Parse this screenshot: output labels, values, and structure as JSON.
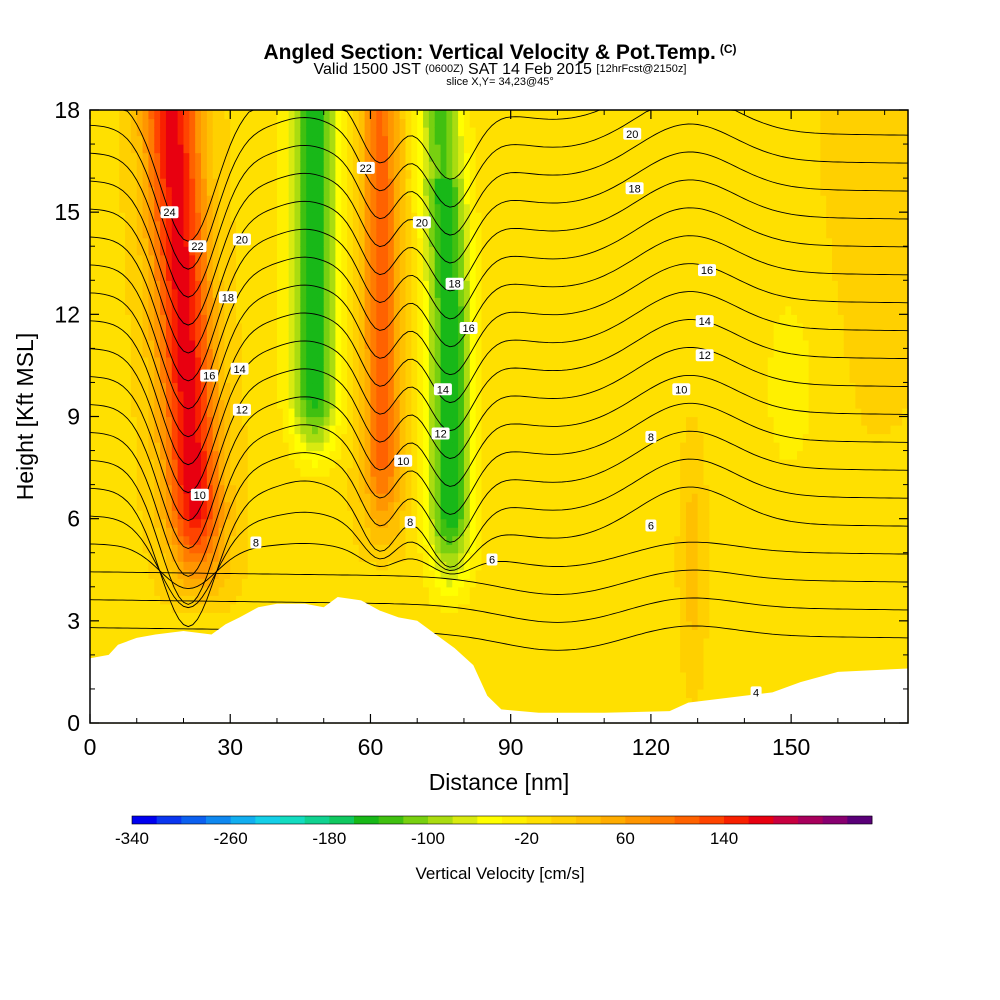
{
  "header": {
    "title": "Angled Section: Vertical Velocity & Pot.Temp.",
    "title_unit": "(C)",
    "subtitle_main": "Valid 1500 JST",
    "subtitle_z": "(0600Z)",
    "subtitle_date": "SAT 14 Feb 2015",
    "subtitle_fcst": "[12hrFcst@2150z]",
    "slice": "slice X,Y= 34,23@45°"
  },
  "chart_data": {
    "type": "heatmap",
    "title": "Angled Section: Vertical Velocity & Pot.Temp.",
    "xlabel": "Distance [nm]",
    "ylabel": "Height [Kft MSL]",
    "xlim": [
      0,
      175
    ],
    "ylim": [
      0,
      18
    ],
    "x_ticks": [
      0,
      30,
      60,
      90,
      120,
      150
    ],
    "y_ticks": [
      0,
      3,
      6,
      9,
      12,
      15,
      18
    ],
    "x_tick_labels": [
      "0",
      "30",
      "60",
      "90",
      "120",
      "150"
    ],
    "y_tick_labels": [
      "0",
      "3",
      "6",
      "9",
      "12",
      "15",
      "18"
    ],
    "fill_variable": "Vertical Velocity [cm/s]",
    "vertical_velocity_bands": [
      {
        "x_center": 20,
        "w_peak": 165,
        "note": "strong updraft"
      },
      {
        "x_center": 48,
        "w_peak": -150,
        "note": "downdraft"
      },
      {
        "x_center": 63,
        "w_peak": 110,
        "note": "updraft"
      },
      {
        "x_center": 77,
        "w_peak": -150,
        "note": "downdraft"
      },
      {
        "x_center": 129,
        "w_peak": 40,
        "note": "weak updraft"
      }
    ],
    "contour_variable": "Potential Temperature (C)",
    "contour_labels": [
      {
        "text": "24",
        "x": 17,
        "y": 15.0
      },
      {
        "text": "22",
        "x": 23,
        "y": 14.0
      },
      {
        "text": "20",
        "x": 32.5,
        "y": 14.2
      },
      {
        "text": "18",
        "x": 29.5,
        "y": 12.5
      },
      {
        "text": "16",
        "x": 25.5,
        "y": 10.2
      },
      {
        "text": "14",
        "x": 32,
        "y": 10.4
      },
      {
        "text": "12",
        "x": 32.5,
        "y": 9.2
      },
      {
        "text": "10",
        "x": 23.5,
        "y": 6.7
      },
      {
        "text": "8",
        "x": 35.5,
        "y": 5.3
      },
      {
        "text": "22",
        "x": 59,
        "y": 16.3
      },
      {
        "text": "20",
        "x": 71,
        "y": 14.7
      },
      {
        "text": "18",
        "x": 78,
        "y": 12.9
      },
      {
        "text": "16",
        "x": 81,
        "y": 11.6
      },
      {
        "text": "14",
        "x": 75.5,
        "y": 9.8
      },
      {
        "text": "12",
        "x": 75,
        "y": 8.5
      },
      {
        "text": "10",
        "x": 67,
        "y": 7.7
      },
      {
        "text": "8",
        "x": 68.5,
        "y": 5.9
      },
      {
        "text": "6",
        "x": 86,
        "y": 4.8
      },
      {
        "text": "20",
        "x": 116,
        "y": 17.3
      },
      {
        "text": "18",
        "x": 116.5,
        "y": 15.7
      },
      {
        "text": "16",
        "x": 132,
        "y": 13.3
      },
      {
        "text": "14",
        "x": 131.5,
        "y": 11.8
      },
      {
        "text": "12",
        "x": 131.5,
        "y": 10.8
      },
      {
        "text": "10",
        "x": 126.5,
        "y": 9.8
      },
      {
        "text": "8",
        "x": 120,
        "y": 8.4
      },
      {
        "text": "6",
        "x": 120,
        "y": 5.8
      },
      {
        "text": "4",
        "x": 142.5,
        "y": 0.9
      }
    ],
    "terrain_kft": [
      [
        0,
        1.9
      ],
      [
        4,
        2.0
      ],
      [
        6,
        2.3
      ],
      [
        10,
        2.5
      ],
      [
        14,
        2.6
      ],
      [
        20,
        2.7
      ],
      [
        26,
        2.6
      ],
      [
        29,
        2.9
      ],
      [
        32,
        3.1
      ],
      [
        36,
        3.4
      ],
      [
        40,
        3.5
      ],
      [
        46,
        3.5
      ],
      [
        50,
        3.4
      ],
      [
        53,
        3.7
      ],
      [
        58,
        3.6
      ],
      [
        62,
        3.3
      ],
      [
        66,
        3.1
      ],
      [
        70,
        3.0
      ],
      [
        74,
        2.6
      ],
      [
        78,
        2.2
      ],
      [
        82,
        1.7
      ],
      [
        85,
        0.8
      ],
      [
        88,
        0.4
      ],
      [
        96,
        0.3
      ],
      [
        110,
        0.3
      ],
      [
        124,
        0.35
      ],
      [
        128,
        0.6
      ],
      [
        140,
        0.8
      ],
      [
        146,
        0.9
      ],
      [
        152,
        1.2
      ],
      [
        160,
        1.5
      ],
      [
        175,
        1.6
      ]
    ],
    "colorbar": {
      "label": "Vertical Velocity [cm/s]",
      "tick_labels": [
        "-340",
        "-260",
        "-180",
        "-100",
        "-20",
        "60",
        "140"
      ],
      "colors": [
        "#0000f0",
        "#0a36f0",
        "#0c60f0",
        "#0f88f0",
        "#12aef0",
        "#14cfe8",
        "#13dcc0",
        "#10d290",
        "#10c860",
        "#18b818",
        "#40c010",
        "#78d010",
        "#aadc10",
        "#d8ea10",
        "#ffff00",
        "#fff000",
        "#ffe000",
        "#ffd000",
        "#ffc000",
        "#ffac00",
        "#ff9600",
        "#ff7c00",
        "#ff6200",
        "#ff4400",
        "#f82000",
        "#e80010",
        "#c80040",
        "#a8005c",
        "#880070",
        "#5a0078"
      ]
    }
  }
}
